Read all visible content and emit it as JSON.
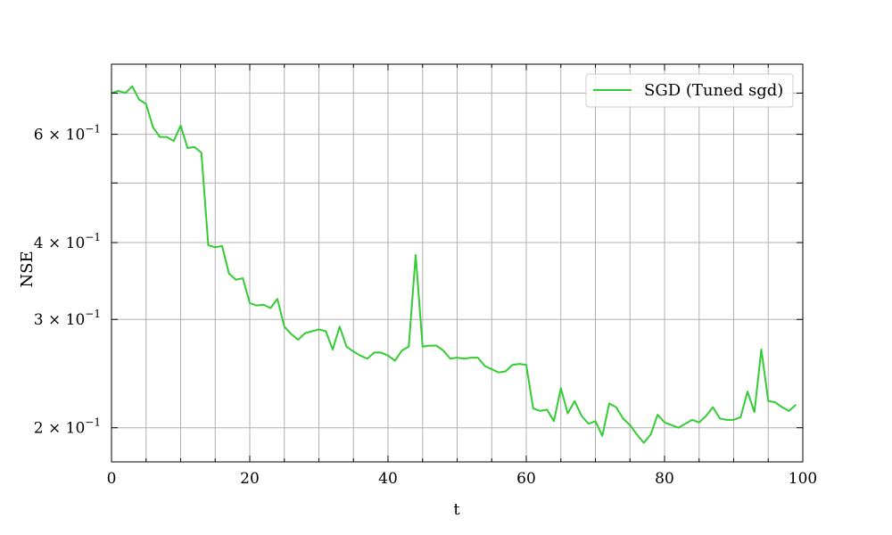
{
  "chart_data": {
    "type": "line",
    "xlabel": "t",
    "ylabel": "NSE",
    "xlim": [
      0,
      100
    ],
    "ylim": [
      0.176,
      0.78
    ],
    "yscale": "log",
    "grid": true,
    "legend_placement": "top-right",
    "x_ticks": [
      0,
      20,
      40,
      60,
      80,
      100
    ],
    "x_tick_labels": [
      "0",
      "20",
      "40",
      "60",
      "80",
      "100"
    ],
    "x_grid": [
      0,
      5,
      10,
      15,
      20,
      25,
      30,
      35,
      40,
      45,
      50,
      55,
      60,
      65,
      70,
      75,
      80,
      85,
      90,
      95,
      100
    ],
    "y_ticks": [
      0.6,
      0.4,
      0.3,
      0.2
    ],
    "y_tick_labels": [
      {
        "mantissa": "6",
        "times": "×",
        "base": "10",
        "exp": "−1"
      },
      {
        "mantissa": "4",
        "times": "×",
        "base": "10",
        "exp": "−1"
      },
      {
        "mantissa": "3",
        "times": "×",
        "base": "10",
        "exp": "−1"
      },
      {
        "mantissa": "2",
        "times": "×",
        "base": "10",
        "exp": "−1"
      }
    ],
    "y_grid": [
      0.2,
      0.3,
      0.4,
      0.5,
      0.6,
      0.7
    ],
    "series": [
      {
        "name": "SGD (Tuned sgd)",
        "color": "#33cc33",
        "x": [
          0,
          1,
          2,
          3,
          4,
          5,
          6,
          7,
          8,
          9,
          10,
          11,
          12,
          13,
          14,
          15,
          16,
          17,
          18,
          19,
          20,
          21,
          22,
          23,
          24,
          25,
          26,
          27,
          28,
          29,
          30,
          31,
          32,
          33,
          34,
          35,
          36,
          37,
          38,
          39,
          40,
          41,
          42,
          43,
          44,
          45,
          46,
          47,
          48,
          49,
          50,
          51,
          52,
          53,
          54,
          55,
          56,
          57,
          58,
          59,
          60,
          61,
          62,
          63,
          64,
          65,
          66,
          67,
          68,
          69,
          70,
          71,
          72,
          73,
          74,
          75,
          76,
          77,
          78,
          79,
          80,
          81,
          82,
          83,
          84,
          85,
          86,
          87,
          88,
          89,
          90,
          91,
          92,
          93,
          94,
          95,
          96,
          97,
          98,
          99
        ],
        "values": [
          0.7,
          0.706,
          0.7,
          0.718,
          0.683,
          0.672,
          0.616,
          0.594,
          0.594,
          0.585,
          0.62,
          0.57,
          0.572,
          0.56,
          0.396,
          0.393,
          0.395,
          0.356,
          0.348,
          0.35,
          0.319,
          0.316,
          0.317,
          0.313,
          0.324,
          0.292,
          0.284,
          0.278,
          0.285,
          0.287,
          0.289,
          0.287,
          0.268,
          0.292,
          0.271,
          0.266,
          0.262,
          0.259,
          0.265,
          0.265,
          0.262,
          0.257,
          0.267,
          0.271,
          0.382,
          0.271,
          0.272,
          0.272,
          0.267,
          0.259,
          0.26,
          0.259,
          0.26,
          0.26,
          0.252,
          0.249,
          0.246,
          0.247,
          0.253,
          0.254,
          0.253,
          0.215,
          0.213,
          0.214,
          0.205,
          0.232,
          0.211,
          0.221,
          0.209,
          0.203,
          0.205,
          0.194,
          0.219,
          0.216,
          0.207,
          0.202,
          0.195,
          0.189,
          0.195,
          0.21,
          0.204,
          0.202,
          0.2,
          0.203,
          0.206,
          0.204,
          0.209,
          0.216,
          0.207,
          0.206,
          0.206,
          0.208,
          0.229,
          0.212,
          0.268,
          0.221,
          0.22,
          0.216,
          0.213,
          0.218
        ]
      }
    ]
  }
}
